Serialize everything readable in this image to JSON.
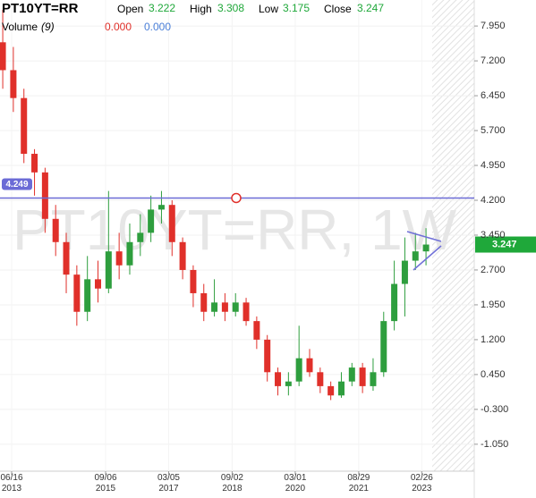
{
  "chart_data": {
    "type": "candlestick",
    "symbol": "PT10YT=RR",
    "watermark": "PT10YT=RR, 1W",
    "ohlc_labels": {
      "open": "Open",
      "high": "High",
      "low": "Low",
      "close": "Close"
    },
    "ohlc_values": {
      "open": "3.222",
      "high": "3.308",
      "low": "3.175",
      "close": "3.247"
    },
    "volume_label": "Volume",
    "volume_period": "(9)",
    "volume_values": [
      "0.000",
      "0.000"
    ],
    "hline": {
      "value": 4.249,
      "label": "4.249",
      "color": "#6b6bd6"
    },
    "last_price": {
      "value": 3.247,
      "label": "3.247",
      "color": "#1fa83a"
    },
    "up_color": "#2e9e3e",
    "down_color": "#e0302a",
    "categories": [
      null,
      null,
      null,
      null,
      null,
      null,
      null,
      null,
      null,
      null,
      null,
      null,
      null,
      null,
      null,
      null,
      null,
      null,
      null,
      null,
      null,
      null,
      null,
      null,
      null,
      null,
      null,
      null,
      null,
      null,
      null,
      null,
      null,
      null,
      null,
      null,
      null,
      null,
      null,
      null,
      null
    ],
    "open": [
      7.6,
      7.0,
      6.4,
      5.2,
      4.8,
      3.8,
      3.3,
      2.6,
      1.8,
      2.5,
      2.3,
      3.1,
      2.8,
      3.3,
      3.5,
      4.0,
      4.1,
      3.3,
      2.7,
      2.2,
      1.8,
      2.0,
      1.8,
      2.0,
      1.6,
      1.2,
      0.5,
      0.2,
      0.3,
      0.8,
      0.5,
      0.2,
      0.0,
      0.3,
      0.6,
      0.2,
      0.5,
      1.6,
      2.4,
      2.9,
      3.1
    ],
    "high": [
      8.3,
      7.5,
      6.6,
      5.3,
      4.9,
      4.1,
      3.5,
      2.8,
      3.0,
      2.9,
      4.4,
      3.5,
      3.7,
      3.9,
      4.3,
      4.4,
      4.2,
      3.4,
      2.8,
      2.4,
      2.5,
      2.2,
      2.2,
      2.1,
      1.7,
      1.3,
      0.6,
      0.5,
      1.5,
      1.0,
      0.6,
      0.3,
      0.5,
      0.7,
      0.7,
      0.8,
      1.8,
      2.9,
      3.4,
      3.5,
      3.6
    ],
    "low": [
      6.6,
      6.1,
      5.0,
      4.3,
      3.5,
      3.0,
      2.2,
      1.5,
      1.6,
      2.0,
      2.2,
      2.5,
      2.6,
      3.0,
      3.3,
      3.7,
      3.0,
      2.5,
      1.9,
      1.6,
      1.7,
      1.6,
      1.7,
      1.5,
      1.0,
      0.3,
      0.0,
      0.0,
      0.2,
      0.4,
      0.05,
      -0.1,
      -0.05,
      0.2,
      0.05,
      0.1,
      0.4,
      1.4,
      1.7,
      2.7,
      2.8
    ],
    "close": [
      7.0,
      6.4,
      5.2,
      4.8,
      3.8,
      3.3,
      2.6,
      1.8,
      2.5,
      2.3,
      3.1,
      2.8,
      3.3,
      3.5,
      4.0,
      4.1,
      3.3,
      2.7,
      2.2,
      1.8,
      2.0,
      1.8,
      2.0,
      1.6,
      1.2,
      0.5,
      0.2,
      0.3,
      0.8,
      0.5,
      0.2,
      0.0,
      0.3,
      0.6,
      0.2,
      0.5,
      1.6,
      2.4,
      2.9,
      3.1,
      3.247
    ],
    "xlim": [
      -0.26,
      44.56
    ],
    "xticks": [
      {
        "value": 0.84,
        "label": "06/16\n2013"
      },
      {
        "value": 9.72,
        "label": "09/06\n2015"
      },
      {
        "value": 15.68,
        "label": "03/05\n2017"
      },
      {
        "value": 21.68,
        "label": "09/02\n2018"
      },
      {
        "value": 27.64,
        "label": "03/01\n2020"
      },
      {
        "value": 33.64,
        "label": "08/29\n2021"
      },
      {
        "value": 39.6,
        "label": "02/26\n2023"
      }
    ],
    "ylim": [
      -1.63,
      8.51
    ],
    "yticks": [
      {
        "value": 7.95,
        "label": "7.950"
      },
      {
        "value": 7.2,
        "label": "7.200"
      },
      {
        "value": 6.45,
        "label": "6.450"
      },
      {
        "value": 5.7,
        "label": "5.700"
      },
      {
        "value": 4.95,
        "label": "4.950"
      },
      {
        "value": 4.2,
        "label": "4.200"
      },
      {
        "value": 3.45,
        "label": "3.450"
      },
      {
        "value": 2.7,
        "label": "2.700"
      },
      {
        "value": 1.95,
        "label": "1.950"
      },
      {
        "value": 1.2,
        "label": "1.200"
      },
      {
        "value": 0.45,
        "label": "0.450"
      },
      {
        "value": -0.3,
        "label": "-0.300"
      },
      {
        "value": -1.05,
        "label": "-1.050"
      }
    ],
    "grid": true
  }
}
